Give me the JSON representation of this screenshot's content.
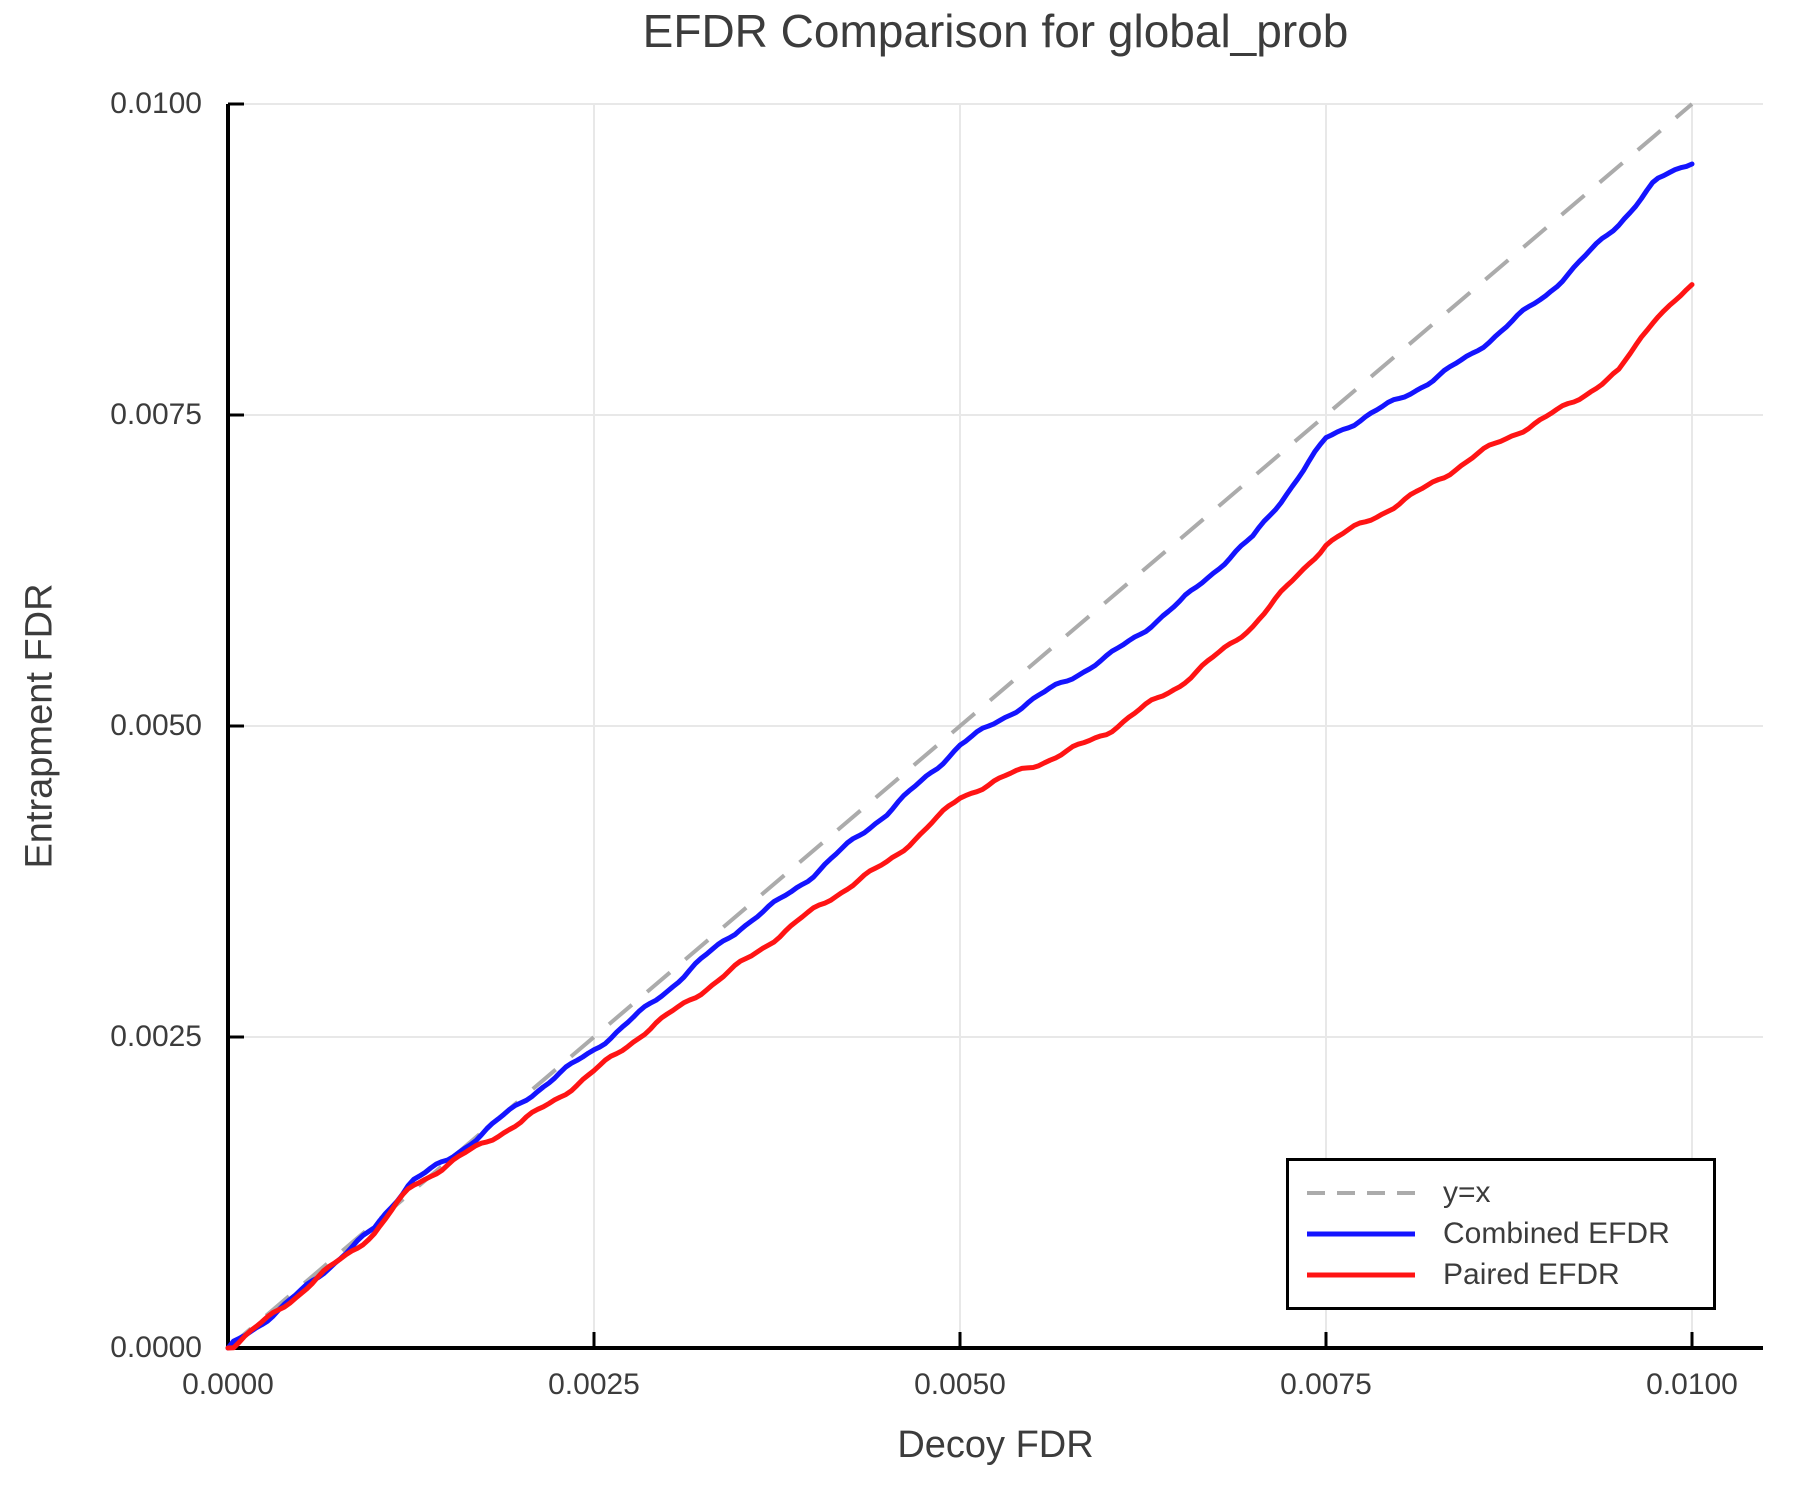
{
  "chart_data": {
    "type": "line",
    "title": "EFDR Comparison for global_prob",
    "xlabel": "Decoy FDR",
    "ylabel": "Entrapment FDR",
    "xlim": [
      0,
      0.01
    ],
    "ylim": [
      0,
      0.01
    ],
    "x_tick_labels": [
      "0.0000",
      "0.0025",
      "0.0050",
      "0.0075",
      "0.0100"
    ],
    "y_tick_labels": [
      "0.0000",
      "0.0025",
      "0.0050",
      "0.0075",
      "0.0100"
    ],
    "grid": true,
    "legend_position": "bottom-right",
    "x": [
      0,
      0.0005,
      0.001,
      0.00125,
      0.0015,
      0.002,
      0.0025,
      0.003,
      0.0035,
      0.004,
      0.0045,
      0.005,
      0.0055,
      0.006,
      0.0065,
      0.007,
      0.0075,
      0.008,
      0.0085,
      0.009,
      0.0095,
      0.00975,
      0.01
    ],
    "series": [
      {
        "name": "y=x",
        "style": "dashed",
        "color": "#ababab",
        "values": [
          0,
          0.0005,
          0.001,
          0.00125,
          0.0015,
          0.002,
          0.0025,
          0.003,
          0.0035,
          0.004,
          0.0045,
          0.005,
          0.0055,
          0.006,
          0.0065,
          0.007,
          0.0075,
          0.008,
          0.0085,
          0.009,
          0.0095,
          0.00975,
          0.01
        ]
      },
      {
        "name": "Combined EFDR",
        "style": "solid",
        "color": "#1414ff",
        "values": [
          0,
          0.00046,
          0.00095,
          0.00135,
          0.00152,
          0.00196,
          0.00241,
          0.00287,
          0.00338,
          0.00381,
          0.00429,
          0.00486,
          0.0052,
          0.00556,
          0.00598,
          0.00652,
          0.00731,
          0.00762,
          0.008,
          0.00845,
          0.00905,
          0.00938,
          0.00953
        ]
      },
      {
        "name": "Paired EFDR",
        "style": "solid",
        "color": "#ff1414",
        "values": [
          0,
          0.00044,
          0.00093,
          0.00131,
          0.00147,
          0.00181,
          0.00223,
          0.00266,
          0.0031,
          0.00351,
          0.00391,
          0.00442,
          0.00468,
          0.00495,
          0.00532,
          0.00582,
          0.00645,
          0.0068,
          0.00715,
          0.00748,
          0.00785,
          0.00828,
          0.00852
        ]
      }
    ]
  },
  "colors": {
    "grid": "#e8e8e8",
    "axis": "#000000",
    "text": "#3c3c3c",
    "background": "#ffffff"
  }
}
